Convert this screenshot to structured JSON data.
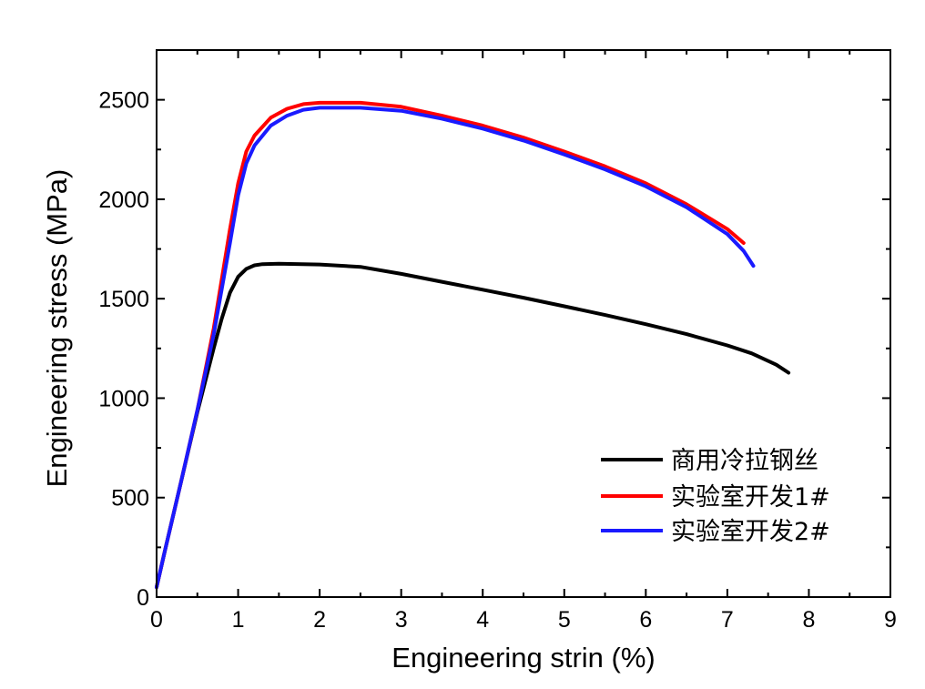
{
  "chart_data": {
    "type": "line",
    "title": "",
    "xlabel": "Engineering strin (%)",
    "ylabel": "Engineering stress (MPa)",
    "xlim": [
      0,
      9
    ],
    "ylim": [
      0,
      2750
    ],
    "x_ticks": [
      0,
      1,
      2,
      3,
      4,
      5,
      6,
      7,
      8,
      9
    ],
    "y_ticks": [
      0,
      500,
      1000,
      1500,
      2000,
      2500
    ],
    "grid": false,
    "legend_position": "bottom-right",
    "series": [
      {
        "name": "商用冷拉钢丝",
        "color": "#000000",
        "x": [
          0,
          0.1,
          0.3,
          0.5,
          0.7,
          0.8,
          0.9,
          1.0,
          1.1,
          1.2,
          1.3,
          1.5,
          2.0,
          2.5,
          3.0,
          3.5,
          4.0,
          4.5,
          5.0,
          5.5,
          6.0,
          6.5,
          7.0,
          7.3,
          7.6,
          7.75
        ],
        "y": [
          50,
          230,
          580,
          930,
          1250,
          1400,
          1530,
          1610,
          1650,
          1668,
          1674,
          1676,
          1672,
          1660,
          1625,
          1585,
          1545,
          1505,
          1462,
          1418,
          1372,
          1322,
          1265,
          1225,
          1168,
          1128
        ]
      },
      {
        "name": "实验室开发1#",
        "color": "#ff0000",
        "x": [
          0,
          0.1,
          0.3,
          0.5,
          0.7,
          0.9,
          1.0,
          1.1,
          1.2,
          1.4,
          1.6,
          1.8,
          2.0,
          2.5,
          3.0,
          3.5,
          4.0,
          4.5,
          5.0,
          5.5,
          6.0,
          6.5,
          7.0,
          7.2
        ],
        "y": [
          50,
          230,
          580,
          940,
          1350,
          1850,
          2080,
          2240,
          2320,
          2410,
          2455,
          2478,
          2485,
          2485,
          2465,
          2420,
          2370,
          2310,
          2240,
          2165,
          2080,
          1975,
          1850,
          1780
        ]
      },
      {
        "name": "实验室开发2#",
        "color": "#1a1aff",
        "x": [
          0,
          0.1,
          0.3,
          0.5,
          0.7,
          0.9,
          1.0,
          1.1,
          1.2,
          1.4,
          1.6,
          1.8,
          2.0,
          2.5,
          3.0,
          3.5,
          4.0,
          4.5,
          5.0,
          5.5,
          6.0,
          6.5,
          7.0,
          7.2,
          7.32
        ],
        "y": [
          50,
          230,
          580,
          940,
          1320,
          1780,
          2020,
          2180,
          2270,
          2370,
          2420,
          2450,
          2460,
          2460,
          2445,
          2405,
          2355,
          2295,
          2225,
          2150,
          2065,
          1960,
          1825,
          1740,
          1665
        ]
      }
    ]
  }
}
